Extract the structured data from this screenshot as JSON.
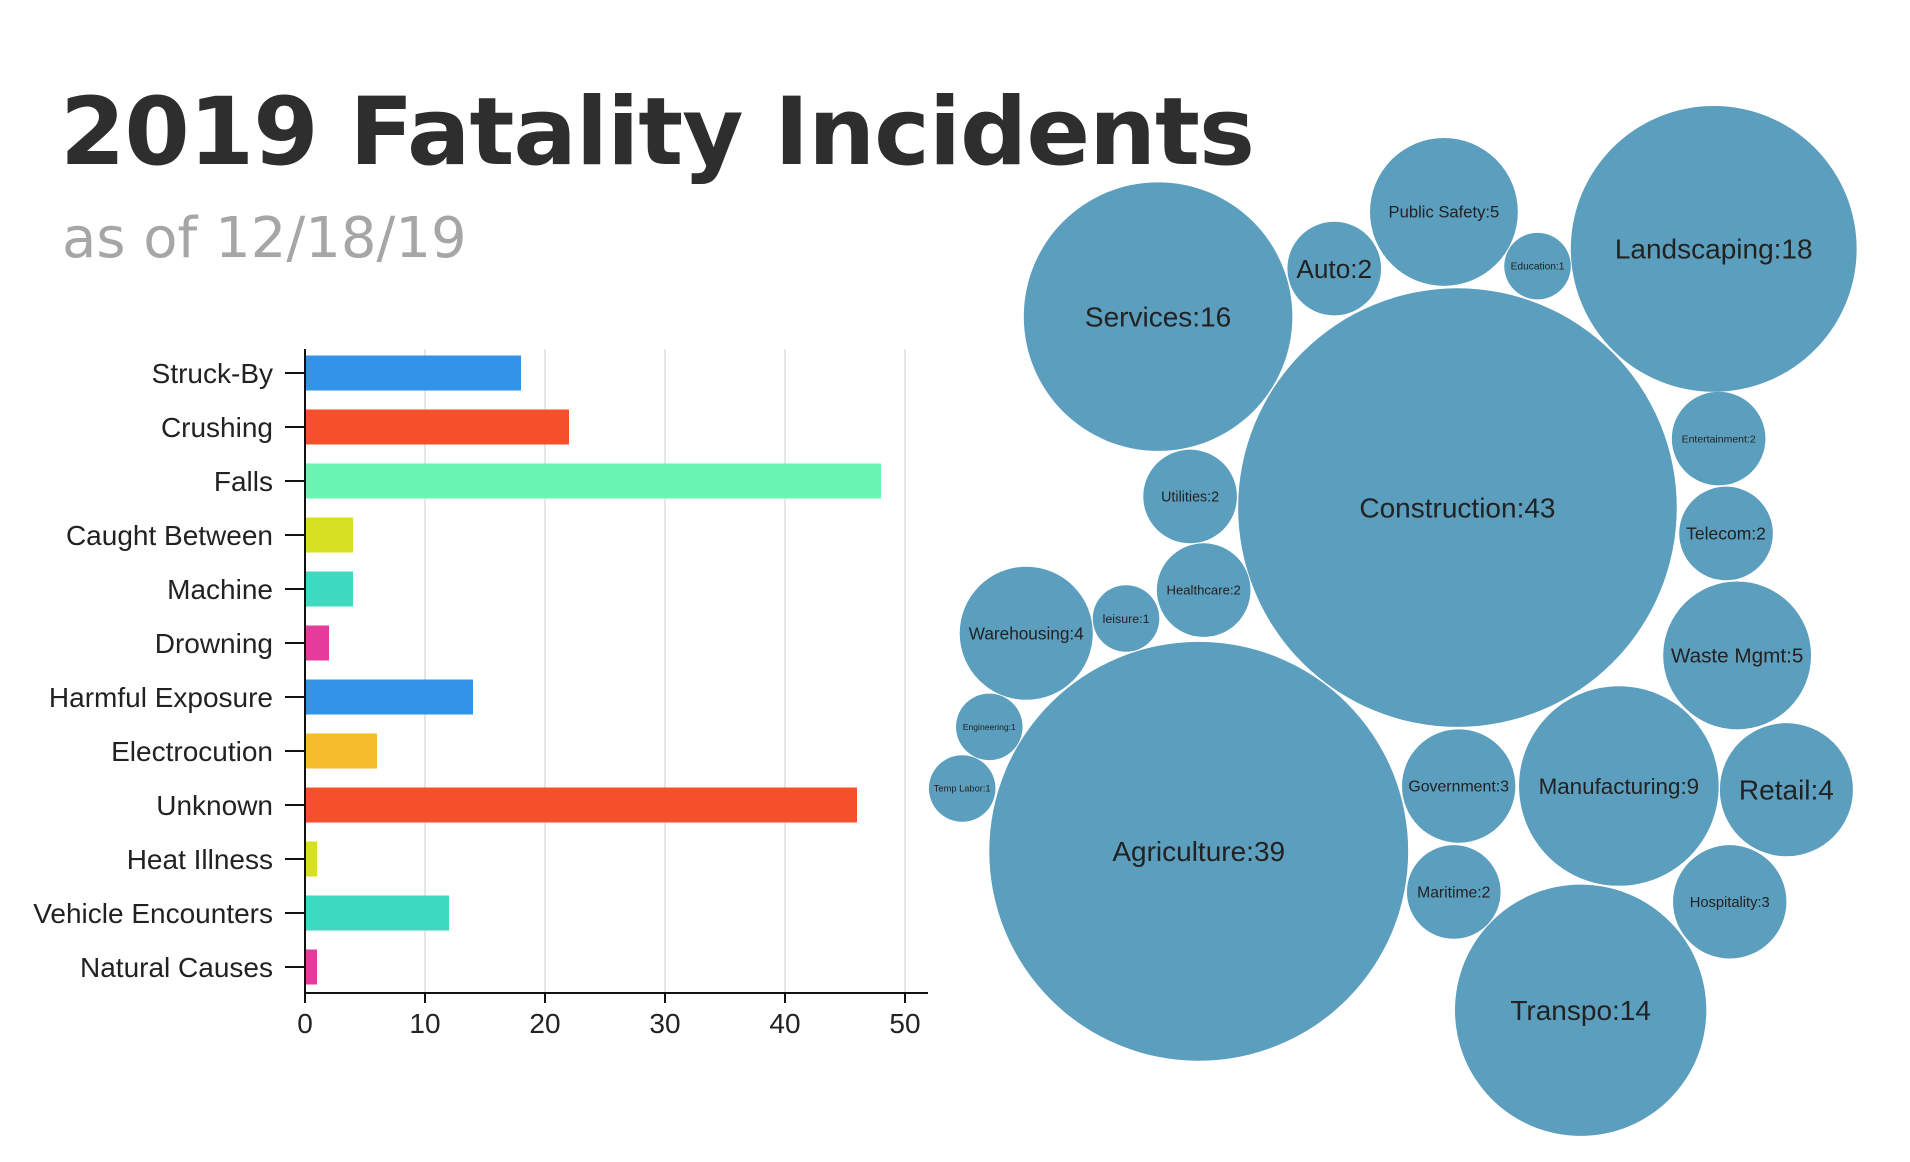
{
  "title": "2019 Fatality Incidents",
  "subtitle": "as of 12/18/19",
  "chart_data": [
    {
      "type": "bar",
      "orientation": "horizontal",
      "categories": [
        "Struck-By",
        "Crushing",
        "Falls",
        "Caught Between",
        "Machine",
        "Drowning",
        "Harmful Exposure",
        "Electrocution",
        "Unknown",
        "Heat Illness",
        "Vehicle Encounters",
        "Natural Causes"
      ],
      "values": [
        18,
        22,
        48,
        4,
        4,
        2,
        14,
        6,
        46,
        1,
        12,
        1
      ],
      "colors": [
        "#3194e8",
        "#f4502a",
        "#69f5b4",
        "#d6e022",
        "#3ddac0",
        "#e53b9b",
        "#3194e8",
        "#f5bb2c",
        "#f4502a",
        "#d6e022",
        "#3ddac0",
        "#e53b9b"
      ],
      "xlim": [
        0,
        50
      ],
      "xticks": [
        "0",
        "10",
        "20",
        "30",
        "40",
        "50"
      ],
      "grid": true
    },
    {
      "type": "bubble",
      "color": "#5b9ebe",
      "items": [
        {
          "name": "Services",
          "value": 16,
          "label": "Services:16"
        },
        {
          "name": "Auto",
          "value": 2,
          "label": "Auto:2"
        },
        {
          "name": "Public Safety",
          "value": 5,
          "label": "Public Safety:5"
        },
        {
          "name": "Education",
          "value": 1,
          "label": "Education:1"
        },
        {
          "name": "Landscaping",
          "value": 18,
          "label": "Landscaping:18"
        },
        {
          "name": "Construction",
          "value": 43,
          "label": "Construction:43"
        },
        {
          "name": "Entertainment",
          "value": 2,
          "label": "Entertainment:2"
        },
        {
          "name": "Utilities",
          "value": 2,
          "label": "Utilities:2"
        },
        {
          "name": "Telecom",
          "value": 2,
          "label": "Telecom:2"
        },
        {
          "name": "Healthcare",
          "value": 2,
          "label": "Healthcare:2"
        },
        {
          "name": "leisure",
          "value": 1,
          "label": "leisure:1"
        },
        {
          "name": "Warehousing",
          "value": 4,
          "label": "Warehousing:4"
        },
        {
          "name": "Waste Mgmt",
          "value": 5,
          "label": "Waste Mgmt:5"
        },
        {
          "name": "Engineering",
          "value": 1,
          "label": "Engineering:1"
        },
        {
          "name": "Temp Labor",
          "value": 1,
          "label": "Temp Labor:1"
        },
        {
          "name": "Agriculture",
          "value": 39,
          "label": "Agriculture:39"
        },
        {
          "name": "Government",
          "value": 3,
          "label": "Government:3"
        },
        {
          "name": "Manufacturing",
          "value": 9,
          "label": "Manufacturing:9"
        },
        {
          "name": "Retail",
          "value": 4,
          "label": "Retail:4"
        },
        {
          "name": "Maritime",
          "value": 2,
          "label": "Maritime:2"
        },
        {
          "name": "Hospitality",
          "value": 3,
          "label": "Hospitality:3"
        },
        {
          "name": "Transpo",
          "value": 14,
          "label": "Transpo:14"
        }
      ]
    }
  ]
}
